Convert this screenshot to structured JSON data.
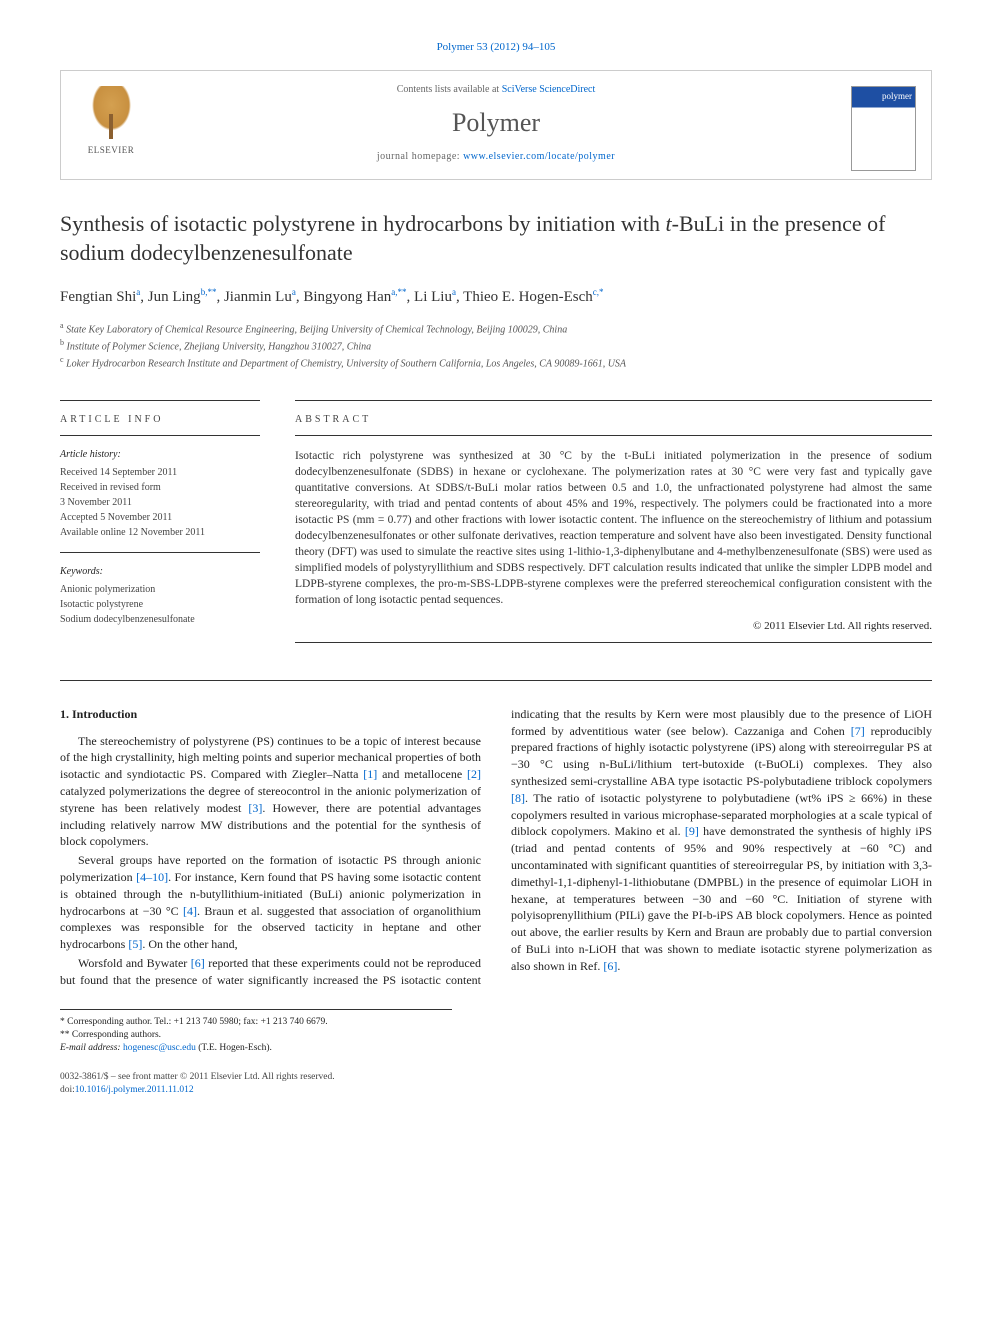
{
  "citation": "Polymer 53 (2012) 94–105",
  "header": {
    "contents_prefix": "Contents lists available at ",
    "contents_link": "SciVerse ScienceDirect",
    "journal_name": "Polymer",
    "homepage_prefix": "journal homepage: ",
    "homepage_url": "www.elsevier.com/locate/polymer",
    "publisher": "ELSEVIER",
    "cover_label": "polymer"
  },
  "title_part1": "Synthesis of isotactic polystyrene in hydrocarbons by initiation with ",
  "title_italic": "t",
  "title_part2": "-BuLi in the presence of sodium dodecylbenzenesulfonate",
  "authors_html": "Fengtian Shi<sup>a</sup>, Jun Ling<sup>b,**</sup>, Jianmin Lu<sup>a</sup>, Bingyong Han<sup>a,**</sup>, Li Liu<sup>a</sup>, Thieo E. Hogen-Esch<sup>c,*</sup>",
  "affiliations": {
    "a": "State Key Laboratory of Chemical Resource Engineering, Beijing University of Chemical Technology, Beijing 100029, China",
    "b": "Institute of Polymer Science, Zhejiang University, Hangzhou 310027, China",
    "c": "Loker Hydrocarbon Research Institute and Department of Chemistry, University of Southern California, Los Angeles, CA 90089-1661, USA"
  },
  "info": {
    "heading": "ARTICLE INFO",
    "history_label": "Article history:",
    "history": [
      "Received 14 September 2011",
      "Received in revised form",
      "3 November 2011",
      "Accepted 5 November 2011",
      "Available online 12 November 2011"
    ],
    "keywords_label": "Keywords:",
    "keywords": [
      "Anionic polymerization",
      "Isotactic polystyrene",
      "Sodium dodecylbenzenesulfonate"
    ]
  },
  "abstract": {
    "heading": "ABSTRACT",
    "text": "Isotactic rich polystyrene was synthesized at 30 °C by the t-BuLi initiated polymerization in the presence of sodium dodecylbenzenesulfonate (SDBS) in hexane or cyclohexane. The polymerization rates at 30 °C were very fast and typically gave quantitative conversions. At SDBS/t-BuLi molar ratios between 0.5 and 1.0, the unfractionated polystyrene had almost the same stereoregularity, with triad and pentad contents of about 45% and 19%, respectively. The polymers could be fractionated into a more isotactic PS (mm = 0.77) and other fractions with lower isotactic content. The influence on the stereochemistry of lithium and potassium dodecylbenzenesulfonates or other sulfonate derivatives, reaction temperature and solvent have also been investigated. Density functional theory (DFT) was used to simulate the reactive sites using 1-lithio-1,3-diphenylbutane and 4-methylbenzenesulfonate (SBS) were used as simplified models of polystyryllithium and SDBS respectively. DFT calculation results indicated that unlike the simpler LDPB model and LDPB-styrene complexes, the pro-m-SBS-LDPB-styrene complexes were the preferred stereochemical configuration consistent with the formation of long isotactic pentad sequences.",
    "copyright": "© 2011 Elsevier Ltd. All rights reserved."
  },
  "intro": {
    "heading": "1. Introduction",
    "p1": "The stereochemistry of polystyrene (PS) continues to be a topic of interest because of the high crystallinity, high melting points and superior mechanical properties of both isotactic and syndiotactic PS. Compared with Ziegler–Natta [1] and metallocene [2] catalyzed polymerizations the degree of stereocontrol in the anionic polymerization of styrene has been relatively modest [3]. However, there are potential advantages including relatively narrow MW distributions and the potential for the synthesis of block copolymers.",
    "p2": "Several groups have reported on the formation of isotactic PS through anionic polymerization [4–10]. For instance, Kern found that PS having some isotactic content is obtained through the n-butyllithium-initiated (BuLi) anionic polymerization in hydrocarbons at −30 °C [4]. Braun et al. suggested that association of organolithium complexes was responsible for the observed tacticity in heptane and other hydrocarbons [5]. On the other hand,",
    "p3": "Worsfold and Bywater [6] reported that these experiments could not be reproduced but found that the presence of water significantly increased the PS isotactic content indicating that the results by Kern were most plausibly due to the presence of LiOH formed by adventitious water (see below). Cazzaniga and Cohen [7] reproducibly prepared fractions of highly isotactic polystyrene (iPS) along with stereoirregular PS at −30 °C using n-BuLi/lithium tert-butoxide (t-BuOLi) complexes. They also synthesized semi-crystalline ABA type isotactic PS-polybutadiene triblock copolymers [8]. The ratio of isotactic polystyrene to polybutadiene (wt% iPS ≥ 66%) in these copolymers resulted in various microphase-separated morphologies at a scale typical of diblock copolymers. Makino et al. [9] have demonstrated the synthesis of highly iPS (triad and pentad contents of 95% and 90% respectively at −60 °C) and uncontaminated with significant quantities of stereoirregular PS, by initiation with 3,3-dimethyl-1,1-diphenyl-1-lithiobutane (DMPBL) in the presence of equimolar LiOH in hexane, at temperatures between −30 and −60 °C. Initiation of styrene with polyisoprenyllithium (PILi) gave the PI-b-iPS AB block copolymers. Hence as pointed out above, the earlier results by Kern and Braun are probably due to partial conversion of BuLi into n-LiOH that was shown to mediate isotactic styrene polymerization as also shown in Ref. [6]."
  },
  "footnotes": {
    "corr1": "* Corresponding author. Tel.: +1 213 740 5980; fax: +1 213 740 6679.",
    "corr2": "** Corresponding authors.",
    "email_label": "E-mail address: ",
    "email": "hogenesc@usc.edu",
    "email_suffix": " (T.E. Hogen-Esch)."
  },
  "footer": {
    "left1": "0032-3861/$ – see front matter © 2011 Elsevier Ltd. All rights reserved.",
    "left2_prefix": "doi:",
    "left2_link": "10.1016/j.polymer.2011.11.012"
  }
}
